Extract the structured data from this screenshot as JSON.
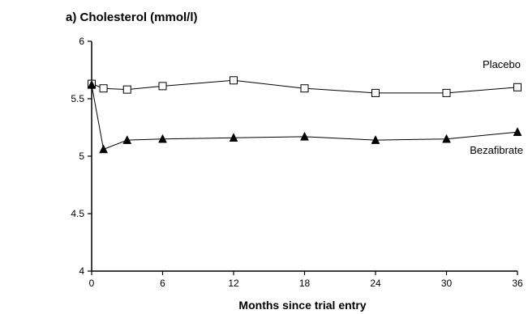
{
  "chart_data": {
    "type": "line",
    "title": "a) Cholesterol (mmol/l)",
    "xlabel": "Months since trial entry",
    "ylabel": "",
    "xlim": [
      0,
      36
    ],
    "ylim": [
      4,
      6
    ],
    "xticks": [
      0,
      6,
      12,
      18,
      24,
      30,
      36
    ],
    "xtick_labels": [
      "0",
      "6",
      "12",
      "18",
      "24",
      "30",
      "36"
    ],
    "yticks": [
      4,
      4.5,
      5,
      5.5,
      6
    ],
    "ytick_labels": [
      "4",
      "4.5",
      "5",
      "5.5",
      "6"
    ],
    "grid": false,
    "legend": "labels placed next to series lines",
    "series": [
      {
        "name": "Placebo",
        "marker": "open-square",
        "x": [
          0,
          1,
          3,
          6,
          12,
          18,
          24,
          30,
          36
        ],
        "y": [
          5.63,
          5.59,
          5.58,
          5.61,
          5.66,
          5.59,
          5.55,
          5.55,
          5.6
        ]
      },
      {
        "name": "Bezafibrate",
        "marker": "filled-triangle",
        "x": [
          0,
          1,
          3,
          6,
          12,
          18,
          24,
          30,
          36
        ],
        "y": [
          5.62,
          5.06,
          5.14,
          5.15,
          5.16,
          5.17,
          5.14,
          5.15,
          5.21
        ]
      }
    ]
  }
}
